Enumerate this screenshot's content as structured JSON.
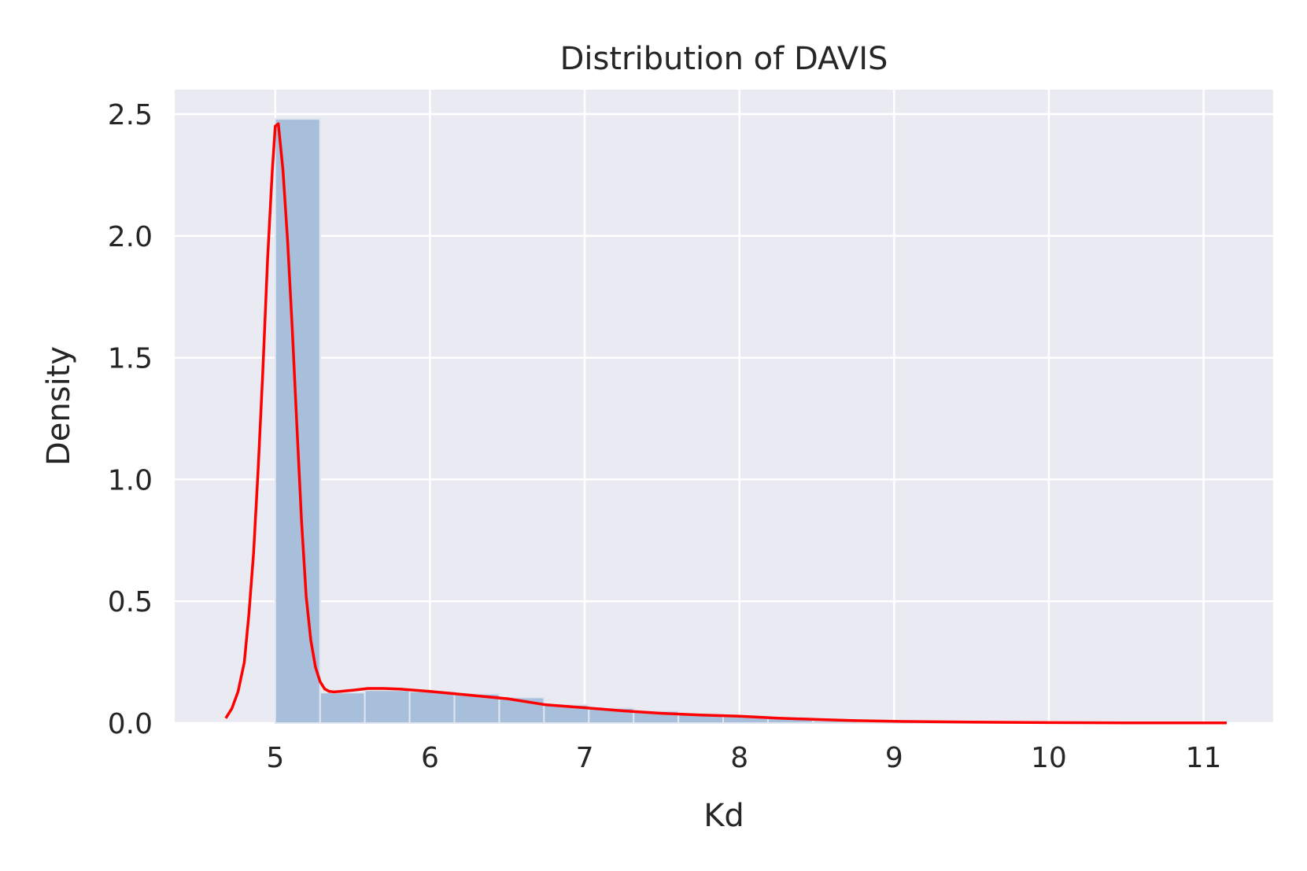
{
  "chart_data": {
    "type": "bar",
    "title": "Distribution of DAVIS",
    "xlabel": "Kd",
    "ylabel": "Density",
    "xlim": [
      4.35,
      11.45
    ],
    "ylim": [
      0.0,
      2.6
    ],
    "xticks": [
      5,
      6,
      7,
      8,
      9,
      10,
      11
    ],
    "xtick_labels": [
      "5",
      "6",
      "7",
      "8",
      "9",
      "10",
      "11"
    ],
    "yticks": [
      0.0,
      0.5,
      1.0,
      1.5,
      2.0,
      2.5
    ],
    "ytick_labels": [
      "0.0",
      "0.5",
      "1.0",
      "1.5",
      "2.0",
      "2.5"
    ],
    "grid": true,
    "colors": {
      "background": "#eaeaf2",
      "grid": "#ffffff",
      "bars": "#a8bfdb",
      "kde": "#ff0000"
    },
    "histogram": {
      "bin_width": 0.2895,
      "bins": [
        {
          "x0": 5.0,
          "density": 2.48
        },
        {
          "x0": 5.29,
          "density": 0.125
        },
        {
          "x0": 5.579,
          "density": 0.135
        },
        {
          "x0": 5.869,
          "density": 0.13
        },
        {
          "x0": 6.158,
          "density": 0.12
        },
        {
          "x0": 6.448,
          "density": 0.105
        },
        {
          "x0": 6.737,
          "density": 0.075
        },
        {
          "x0": 7.027,
          "density": 0.062
        },
        {
          "x0": 7.316,
          "density": 0.05
        },
        {
          "x0": 7.606,
          "density": 0.038
        },
        {
          "x0": 7.895,
          "density": 0.03
        },
        {
          "x0": 8.185,
          "density": 0.022
        },
        {
          "x0": 8.474,
          "density": 0.01
        },
        {
          "x0": 8.764,
          "density": 0.006
        },
        {
          "x0": 9.053,
          "density": 0.004
        },
        {
          "x0": 9.343,
          "density": 0.003
        },
        {
          "x0": 9.632,
          "density": 0.002
        },
        {
          "x0": 9.922,
          "density": 0.001
        },
        {
          "x0": 10.211,
          "density": 0.001
        },
        {
          "x0": 10.501,
          "density": 0.0005
        },
        {
          "x0": 10.79,
          "density": 0.0005
        }
      ]
    },
    "kde": {
      "x": [
        4.68,
        4.72,
        4.76,
        4.8,
        4.83,
        4.86,
        4.89,
        4.92,
        4.95,
        4.98,
        5.0,
        5.02,
        5.05,
        5.08,
        5.11,
        5.14,
        5.17,
        5.2,
        5.23,
        5.26,
        5.29,
        5.32,
        5.35,
        5.38,
        5.42,
        5.5,
        5.6,
        5.7,
        5.8,
        6.0,
        6.25,
        6.5,
        6.75,
        7.0,
        7.25,
        7.5,
        7.75,
        8.0,
        8.25,
        8.5,
        8.75,
        9.0,
        9.5,
        10.0,
        10.5,
        11.15
      ],
      "y": [
        0.02,
        0.06,
        0.13,
        0.25,
        0.45,
        0.7,
        1.05,
        1.45,
        1.9,
        2.26,
        2.45,
        2.46,
        2.27,
        1.98,
        1.62,
        1.22,
        0.83,
        0.52,
        0.34,
        0.23,
        0.17,
        0.14,
        0.13,
        0.128,
        0.13,
        0.135,
        0.142,
        0.142,
        0.14,
        0.13,
        0.115,
        0.1,
        0.075,
        0.063,
        0.05,
        0.04,
        0.033,
        0.028,
        0.02,
        0.015,
        0.01,
        0.007,
        0.004,
        0.002,
        0.001,
        0.0005
      ]
    }
  }
}
